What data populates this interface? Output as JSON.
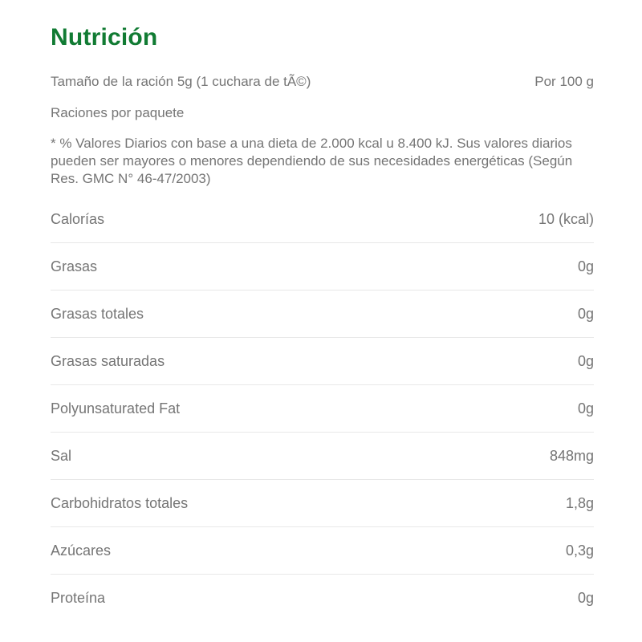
{
  "page": {
    "title": "Nutrición",
    "accent_color": "#117b33",
    "text_color": "#757575",
    "divider_color": "#e8e8e8"
  },
  "serving": {
    "size_label": "Tamaño de la ración 5g (1 cuchara de tÃ©)",
    "per_label": "Por 100 g",
    "servings_label": "Raciones por paquete"
  },
  "footnote": "* % Valores Diarios con base a una dieta de 2.000 kcal u 8.400 kJ. Sus valores diarios pueden ser mayores o menores dependiendo de sus necesidades energéticas (Según Res. GMC N° 46-47/2003)",
  "nutrients": [
    {
      "label": "Calorías",
      "value": "10 (kcal)"
    },
    {
      "label": "Grasas",
      "value": "0g"
    },
    {
      "label": "Grasas totales",
      "value": "0g"
    },
    {
      "label": "Grasas saturadas",
      "value": "0g"
    },
    {
      "label": "Polyunsaturated Fat",
      "value": "0g"
    },
    {
      "label": "Sal",
      "value": "848mg"
    },
    {
      "label": "Carbohidratos totales",
      "value": "1,8g"
    },
    {
      "label": "Azúcares",
      "value": "0,3g"
    },
    {
      "label": "Proteína",
      "value": "0g"
    }
  ]
}
